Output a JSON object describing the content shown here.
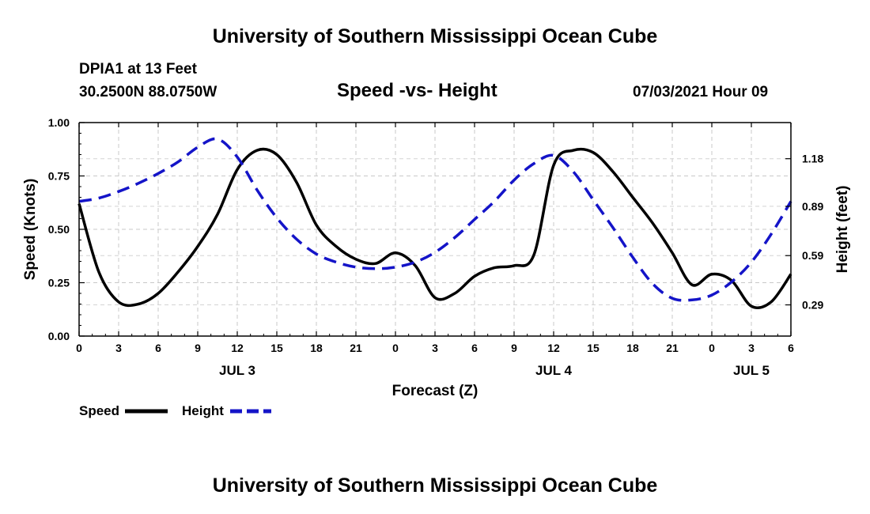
{
  "page": {
    "title_top": "University of Southern Mississippi Ocean Cube",
    "title_bottom": "University of Southern Mississippi Ocean Cube",
    "station": "DPIA1 at 13 Feet",
    "coords": "30.2500N  88.0750W",
    "chart_title": "Speed -vs- Height",
    "timestamp": "07/03/2021 Hour 09"
  },
  "chart_data": {
    "type": "line",
    "title": "Speed -vs- Height",
    "xlabel": "Forecast (Z)",
    "ylabel": "Speed (Knots)",
    "y2label": "Height (feet)",
    "x_range": [
      0,
      54
    ],
    "x": [
      0,
      1.5,
      3,
      4.5,
      6,
      7.5,
      9,
      10.5,
      12,
      13.5,
      15,
      16.5,
      18,
      19.5,
      21,
      22.5,
      24,
      25.5,
      27,
      28.5,
      30,
      31.5,
      33,
      34.5,
      36,
      37.5,
      39,
      40.5,
      42,
      43.5,
      45,
      46.5,
      48,
      49.5,
      51,
      52.5,
      54
    ],
    "x_ticks": [
      0,
      3,
      6,
      9,
      12,
      15,
      18,
      21,
      24,
      27,
      30,
      33,
      36,
      39,
      42,
      45,
      48,
      51,
      54
    ],
    "x_tick_labels": [
      "0",
      "3",
      "6",
      "9",
      "12",
      "15",
      "18",
      "21",
      "0",
      "3",
      "6",
      "9",
      "12",
      "15",
      "18",
      "21",
      "0",
      "3",
      "6"
    ],
    "date_labels": [
      {
        "label": "JUL 3",
        "at": 12
      },
      {
        "label": "JUL 4",
        "at": 36
      },
      {
        "label": "JUL 5",
        "at": 51
      }
    ],
    "y_range": [
      0,
      1
    ],
    "y_ticks": [
      0,
      0.25,
      0.5,
      0.75,
      1.0
    ],
    "y_tick_labels": [
      "0.00",
      "0.25",
      "0.50",
      "0.75",
      "1.00"
    ],
    "y2_range": [
      0.1,
      1.4
    ],
    "y2_ticks": [
      0.29,
      0.59,
      0.89,
      1.18
    ],
    "y2_tick_labels": [
      "0.29",
      "0.59",
      "0.89",
      "1.18"
    ],
    "grid": true,
    "legend_position": "bottom-left",
    "series": [
      {
        "name": "Speed",
        "axis": "left",
        "color": "#000000",
        "dash": "solid",
        "values": [
          0.62,
          0.3,
          0.16,
          0.15,
          0.2,
          0.3,
          0.42,
          0.57,
          0.78,
          0.87,
          0.85,
          0.72,
          0.52,
          0.42,
          0.36,
          0.34,
          0.39,
          0.33,
          0.18,
          0.2,
          0.28,
          0.32,
          0.33,
          0.38,
          0.8,
          0.87,
          0.86,
          0.77,
          0.65,
          0.53,
          0.39,
          0.24,
          0.29,
          0.26,
          0.14,
          0.16,
          0.29
        ]
      },
      {
        "name": "Height",
        "axis": "right",
        "color": "#1414c8",
        "dash": "dashed",
        "values": [
          0.92,
          0.94,
          0.98,
          1.03,
          1.09,
          1.16,
          1.25,
          1.3,
          1.19,
          0.99,
          0.82,
          0.69,
          0.6,
          0.55,
          0.52,
          0.51,
          0.52,
          0.55,
          0.61,
          0.7,
          0.81,
          0.92,
          1.05,
          1.15,
          1.2,
          1.1,
          0.93,
          0.76,
          0.58,
          0.42,
          0.33,
          0.32,
          0.35,
          0.43,
          0.55,
          0.72,
          0.92
        ]
      }
    ]
  },
  "legend": {
    "items": [
      {
        "label": "Speed",
        "color": "#000000",
        "dash": "solid"
      },
      {
        "label": "Height",
        "color": "#1414c8",
        "dash": "dashed"
      }
    ]
  }
}
